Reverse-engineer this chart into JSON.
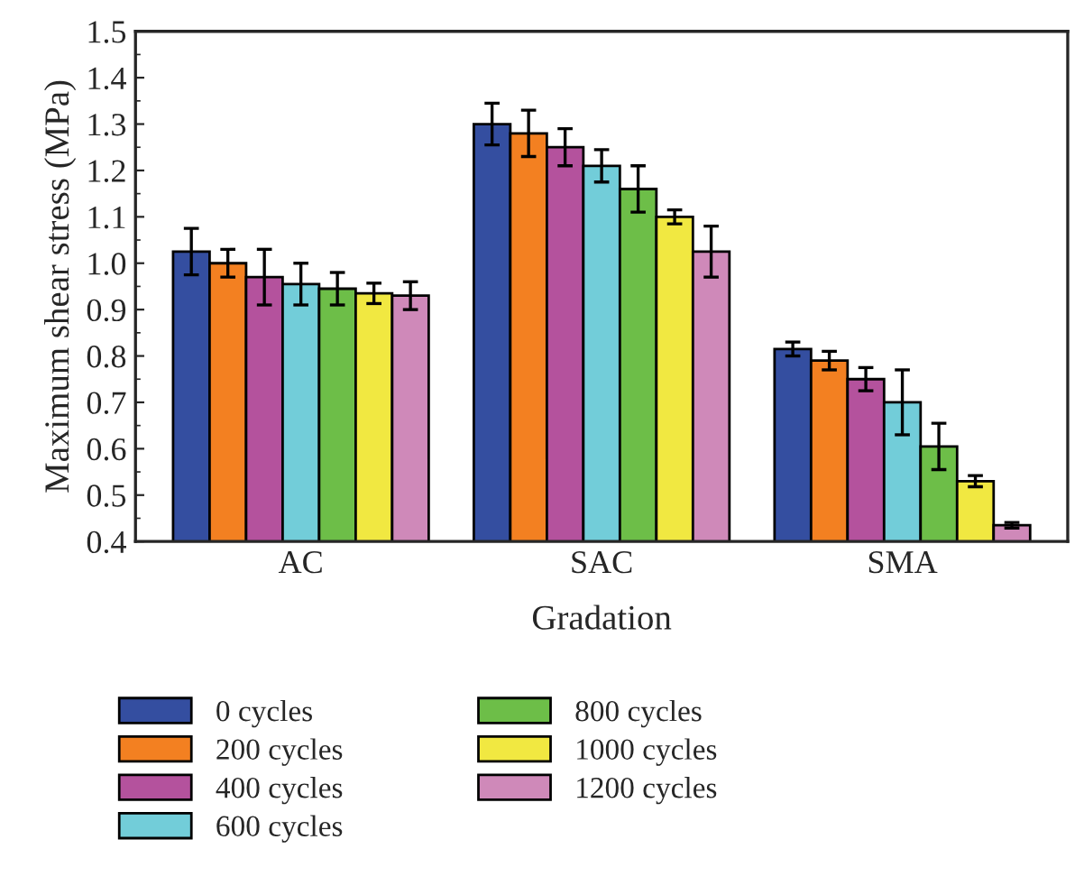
{
  "chart_data": {
    "type": "bar",
    "xlabel": "Gradation",
    "ylabel": "Maximum shear stress (MPa)",
    "categories": [
      "AC",
      "SAC",
      "SMA"
    ],
    "series": [
      {
        "name": "0 cycles",
        "color": "#344ea0",
        "values": [
          1.025,
          1.3,
          0.815
        ],
        "errors": [
          0.05,
          0.045,
          0.015
        ]
      },
      {
        "name": "200 cycles",
        "color": "#f38021",
        "values": [
          1.0,
          1.28,
          0.79
        ],
        "errors": [
          0.03,
          0.05,
          0.02
        ]
      },
      {
        "name": "400 cycles",
        "color": "#b4529d",
        "values": [
          0.97,
          1.25,
          0.75
        ],
        "errors": [
          0.06,
          0.04,
          0.025
        ]
      },
      {
        "name": "600 cycles",
        "color": "#72cdd9",
        "values": [
          0.955,
          1.21,
          0.7
        ],
        "errors": [
          0.045,
          0.035,
          0.07
        ]
      },
      {
        "name": "800 cycles",
        "color": "#6dbe48",
        "values": [
          0.945,
          1.16,
          0.605
        ],
        "errors": [
          0.035,
          0.05,
          0.05
        ]
      },
      {
        "name": "1000 cycles",
        "color": "#f1e841",
        "values": [
          0.935,
          1.1,
          0.53
        ],
        "errors": [
          0.022,
          0.015,
          0.012
        ]
      },
      {
        "name": "1200 cycles",
        "color": "#cf89b9",
        "values": [
          0.93,
          1.025,
          0.435
        ],
        "errors": [
          0.03,
          0.055,
          0.006
        ]
      }
    ],
    "ylim": [
      0.4,
      1.5
    ],
    "yticks": [
      0.4,
      0.5,
      0.6,
      0.7,
      0.8,
      0.9,
      {
        "value": 1.0,
        "label": "1.0"
      },
      1.1,
      1.2,
      1.3,
      1.4,
      1.5
    ],
    "grid": false,
    "legend": "bottom"
  }
}
